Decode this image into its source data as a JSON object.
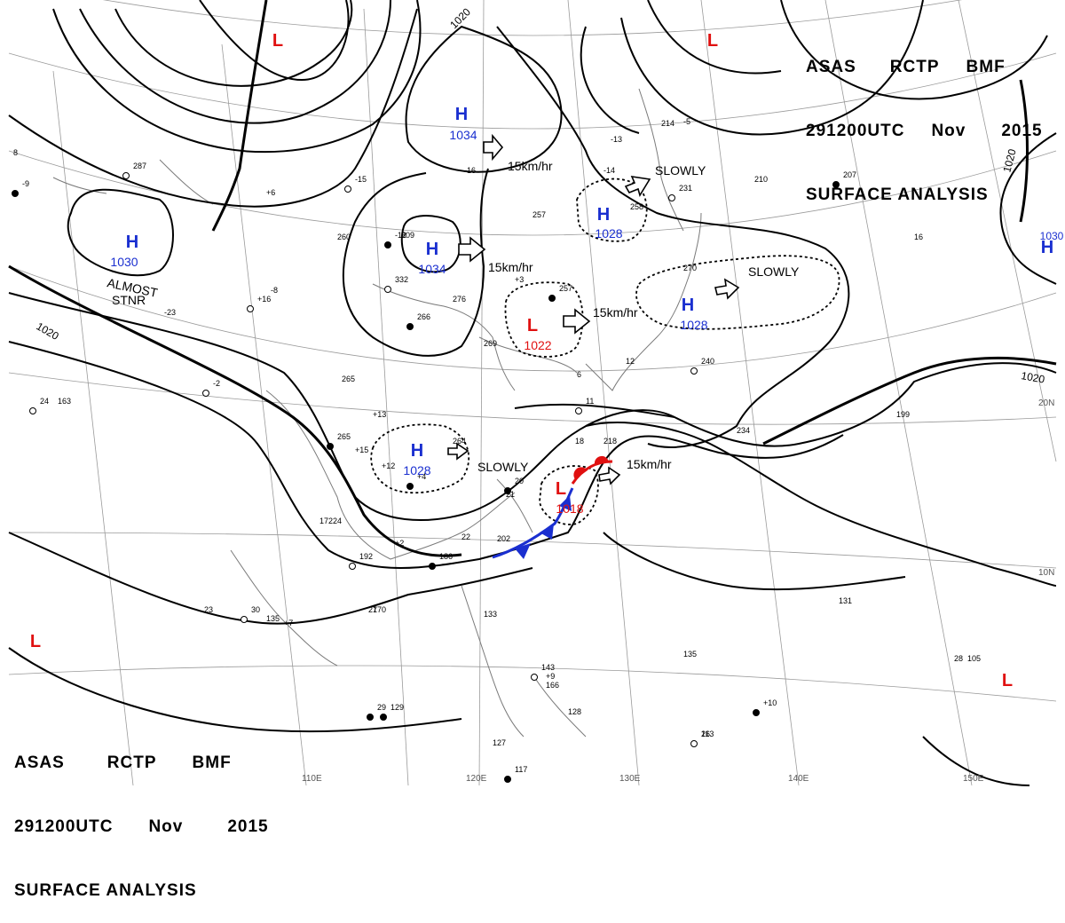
{
  "title": {
    "agency": "ASAS",
    "center": "RCTP",
    "type": "BMF",
    "datetime": "291200UTC",
    "month": "Nov",
    "year": "2015",
    "product": "SURFACE ANALYSIS"
  },
  "colors": {
    "high": "#1a2fd0",
    "low": "#e01010",
    "isobar": "#000000",
    "grid": "#9a9a9a",
    "coast": "#7a7a7a",
    "cold_front": "#1a2fd0",
    "warm_front": "#e01010"
  },
  "longitude_labels": [
    "110E",
    "120E",
    "130E",
    "140E",
    "150E"
  ],
  "latitude_labels": [
    "20N",
    "10N"
  ],
  "isobar_labels": [
    "1020",
    "1020",
    "1020",
    "1020"
  ],
  "pressure_centers": [
    {
      "type": "H",
      "value": "1034"
    },
    {
      "type": "H",
      "value": "1034"
    },
    {
      "type": "H",
      "value": "1030"
    },
    {
      "type": "H",
      "value": "1028"
    },
    {
      "type": "H",
      "value": "1028"
    },
    {
      "type": "H",
      "value": "1028"
    },
    {
      "type": "H",
      "value": "1030"
    },
    {
      "type": "L",
      "value": "1022"
    },
    {
      "type": "L",
      "value": "1018"
    },
    {
      "type": "L",
      "value": ""
    },
    {
      "type": "L",
      "value": ""
    },
    {
      "type": "L",
      "value": ""
    },
    {
      "type": "L",
      "value": ""
    }
  ],
  "motion_labels": [
    "15km/hr",
    "15km/hr",
    "15km/hr",
    "15km/hr",
    "SLOWLY",
    "SLOWLY",
    "SLOWLY",
    "ALMOST",
    "STNR"
  ],
  "station_numbers": [
    "287",
    "257",
    "260",
    "266",
    "265",
    "224",
    "192",
    "170",
    "135",
    "129",
    "163",
    "309",
    "332",
    "276",
    "269",
    "257",
    "258",
    "270",
    "240",
    "234",
    "199",
    "207",
    "210",
    "214",
    "231",
    "218",
    "202",
    "186",
    "131",
    "135",
    "113",
    "105",
    "127",
    "117",
    "133",
    "128",
    "143",
    "166",
    "264",
    "265",
    "23",
    "27",
    "30",
    "28",
    "26",
    "29",
    "16",
    "17",
    "24",
    "22",
    "21",
    "20",
    "18",
    "12",
    "11",
    "6",
    "8",
    "-12",
    "-14",
    "-13",
    "-15",
    "-16",
    "-23",
    "-9",
    "-5",
    "-8",
    "-2",
    "+12",
    "+15",
    "+10",
    "+9",
    "+7",
    "+16",
    "+13",
    "+2",
    "+4",
    "+3",
    "+6"
  ]
}
